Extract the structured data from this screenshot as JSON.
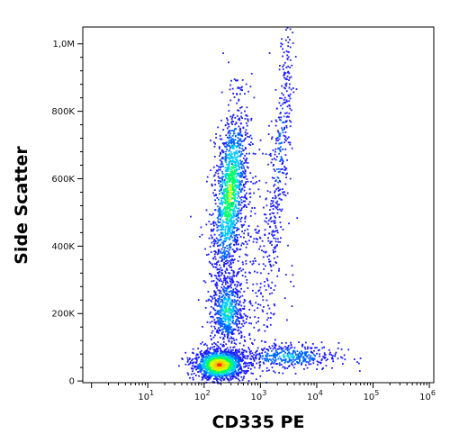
{
  "chart_data": {
    "type": "scatter",
    "style": "flow-cytometry density dot plot (pseudocolor)",
    "xlabel": "CD335 PE",
    "ylabel": "Side Scatter",
    "x_scale": "log",
    "x_range": [
      0.7,
      1200000
    ],
    "y_scale": "linear",
    "y_range": [
      -5000,
      1050000
    ],
    "x_ticks": [
      {
        "value": 10,
        "base": "10",
        "exp": "1"
      },
      {
        "value": 100,
        "base": "10",
        "exp": "2"
      },
      {
        "value": 1000,
        "base": "10",
        "exp": "3"
      },
      {
        "value": 10000,
        "base": "10",
        "exp": "4"
      },
      {
        "value": 100000,
        "base": "10",
        "exp": "5"
      },
      {
        "value": 1000000,
        "base": "10",
        "exp": "6"
      }
    ],
    "y_ticks": [
      {
        "value": 0,
        "label": "0"
      },
      {
        "value": 200000,
        "label": "200K"
      },
      {
        "value": 400000,
        "label": "400K"
      },
      {
        "value": 600000,
        "label": "600K"
      },
      {
        "value": 800000,
        "label": "800K"
      },
      {
        "value": 1000000,
        "label": "1,0M"
      }
    ],
    "density_colors": [
      "#1a1aff",
      "#0066ff",
      "#00ccff",
      "#00ff66",
      "#ccff00",
      "#ffcc00",
      "#ff3300"
    ],
    "populations": [
      {
        "center_x": 180,
        "center_y": 50000,
        "density": "highest"
      },
      {
        "center_x": 280,
        "center_y": 560000,
        "density": "high"
      },
      {
        "center_x": 250,
        "center_y": 210000,
        "density": "medium"
      },
      {
        "center_x": 3000,
        "center_y": 75000,
        "density": "low"
      },
      {
        "center_x": 2200,
        "center_y": 700000,
        "density": "low"
      }
    ]
  }
}
